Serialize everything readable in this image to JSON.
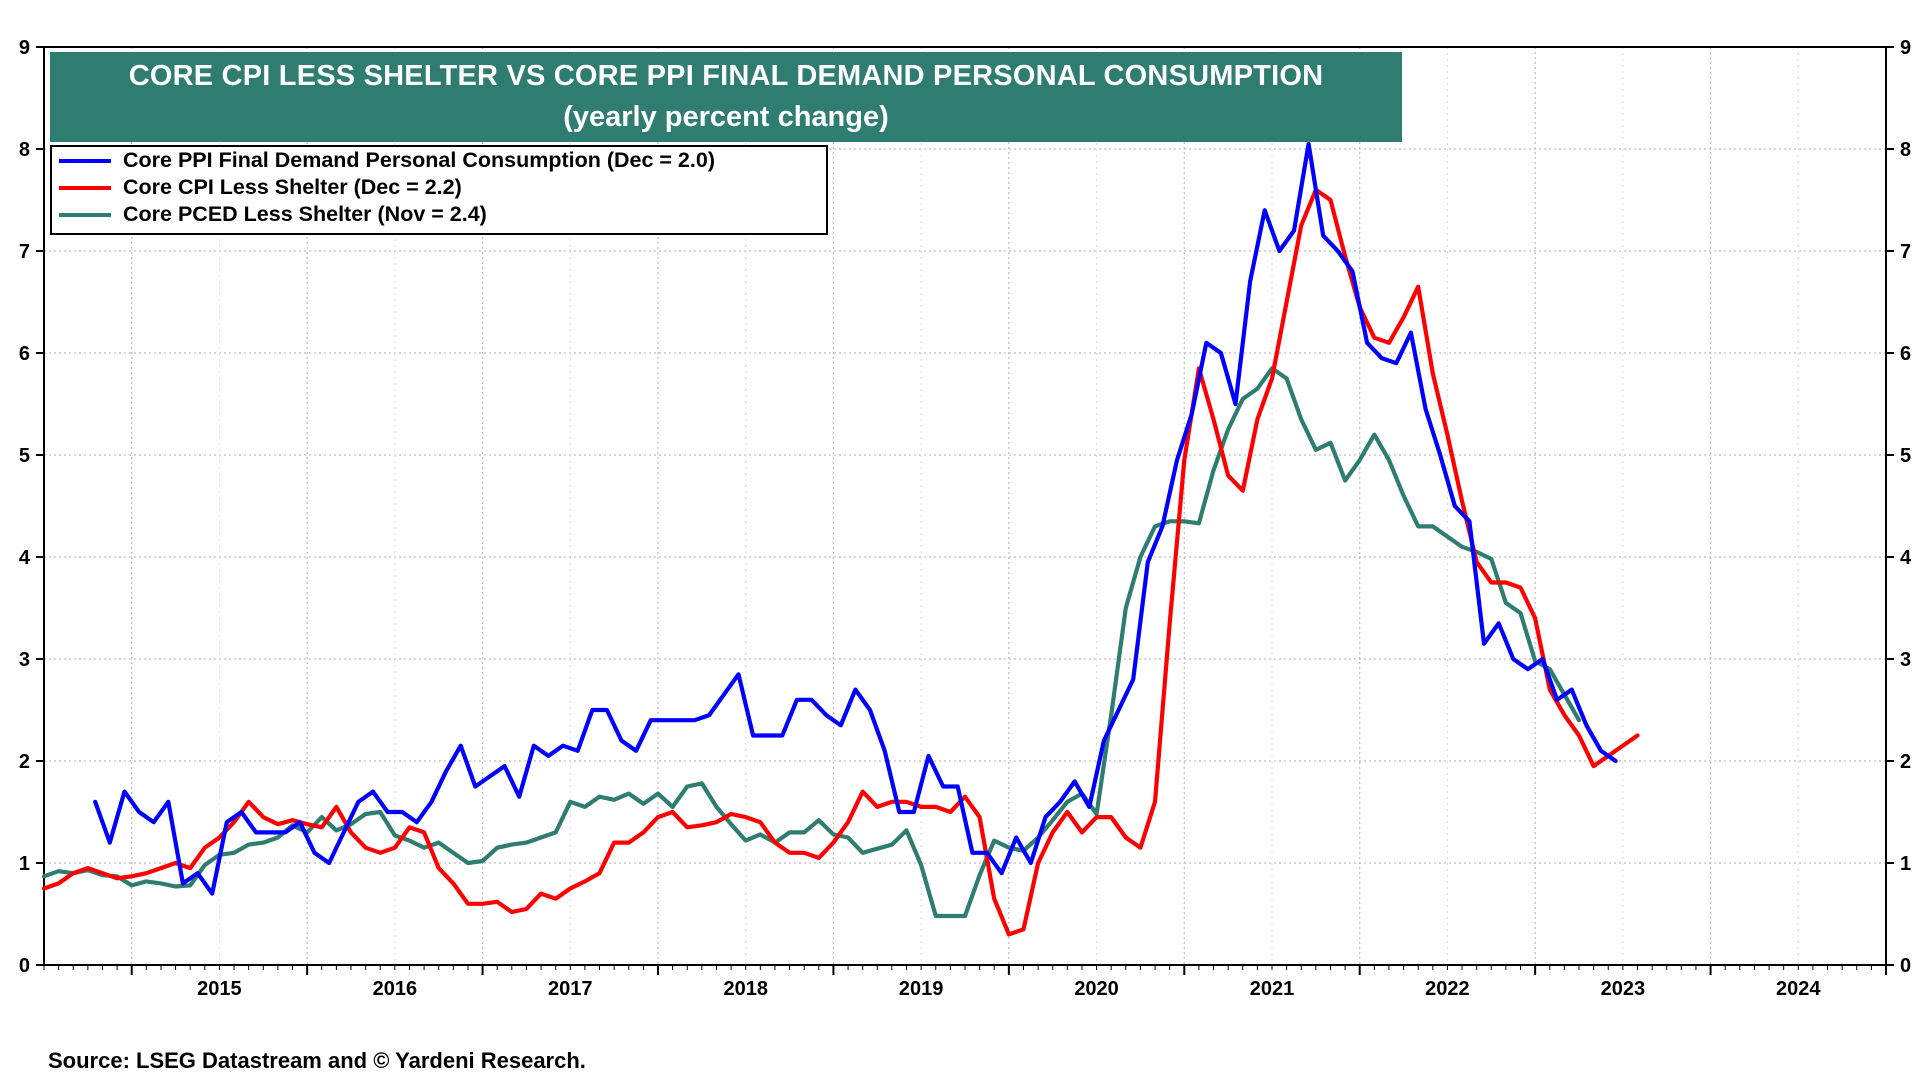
{
  "title": {
    "line1": "CORE CPI LESS SHELTER VS CORE PPI FINAL DEMAND PERSONAL CONSUMPTION",
    "line2": "(yearly percent change)"
  },
  "legend": [
    {
      "label": "Core PPI Final Demand Personal Consumption (Dec = 2.0)",
      "color": "#0000ff"
    },
    {
      "label": "Core CPI Less Shelter (Dec = 2.2)",
      "color": "#ff0000"
    },
    {
      "label": "Core PCED Less Shelter (Nov = 2.4)",
      "color": "#2e7d70"
    }
  ],
  "source": "Source: LSEG Datastream and © Yardeni Research.",
  "chart_data": {
    "type": "line",
    "title": "CORE CPI LESS SHELTER VS CORE PPI FINAL DEMAND PERSONAL CONSUMPTION",
    "subtitle": "(yearly percent change)",
    "xlabel": "",
    "ylabel": "",
    "xlim": [
      2014.5,
      2025.0
    ],
    "ylim": [
      0,
      9
    ],
    "grid": true,
    "y_ticks": [
      "0",
      "1",
      "2",
      "3",
      "4",
      "5",
      "6",
      "7",
      "8",
      "9"
    ],
    "year_labels": [
      "2015",
      "2016",
      "2017",
      "2018",
      "2019",
      "2020",
      "2021",
      "2022",
      "2023",
      "2024"
    ],
    "series": [
      {
        "name": "Core PPI Final Demand Personal Consumption (Dec = 2.0)",
        "color": "#0000ff",
        "start": 2014.792,
        "values": [
          1.6,
          1.2,
          1.7,
          1.5,
          1.4,
          1.6,
          0.8,
          0.9,
          0.7,
          1.4,
          1.5,
          1.3,
          1.3,
          1.3,
          1.4,
          1.1,
          1.0,
          1.3,
          1.6,
          1.7,
          1.5,
          1.5,
          1.4,
          1.6,
          1.9,
          2.15,
          1.75,
          1.85,
          1.95,
          1.65,
          2.15,
          2.05,
          2.15,
          2.1,
          2.5,
          2.5,
          2.2,
          2.1,
          2.4,
          2.4,
          2.4,
          2.4,
          2.45,
          2.65,
          2.85,
          2.25,
          2.25,
          2.25,
          2.6,
          2.6,
          2.45,
          2.35,
          2.7,
          2.5,
          2.1,
          1.5,
          1.5,
          2.05,
          1.75,
          1.75,
          1.1,
          1.1,
          0.9,
          1.25,
          1.0,
          1.45,
          1.6,
          1.8,
          1.55,
          2.2,
          2.5,
          2.8,
          3.95,
          4.3,
          4.95,
          5.4,
          6.1,
          6.0,
          5.5,
          6.7,
          7.4,
          7.0,
          7.2,
          8.05,
          7.15,
          7.0,
          6.8,
          6.1,
          5.95,
          5.9,
          6.2,
          5.45,
          5.0,
          4.5,
          4.35,
          3.15,
          3.35,
          3.0,
          2.9,
          3.0,
          2.6,
          2.7,
          2.35,
          2.1,
          2.0
        ]
      },
      {
        "name": "Core CPI Less Shelter (Dec = 2.2)",
        "color": "#ff0000",
        "start": 2014.5,
        "values": [
          0.75,
          0.8,
          0.9,
          0.95,
          0.9,
          0.85,
          0.87,
          0.9,
          0.95,
          1.0,
          0.95,
          1.15,
          1.25,
          1.4,
          1.6,
          1.45,
          1.38,
          1.42,
          1.38,
          1.35,
          1.55,
          1.3,
          1.15,
          1.1,
          1.15,
          1.35,
          1.3,
          0.95,
          0.8,
          0.6,
          0.6,
          0.62,
          0.52,
          0.55,
          0.7,
          0.65,
          0.75,
          0.82,
          0.9,
          1.2,
          1.2,
          1.3,
          1.45,
          1.5,
          1.35,
          1.37,
          1.4,
          1.48,
          1.45,
          1.4,
          1.2,
          1.1,
          1.1,
          1.05,
          1.2,
          1.4,
          1.7,
          1.55,
          1.6,
          1.6,
          1.55,
          1.55,
          1.5,
          1.65,
          1.45,
          0.65,
          0.3,
          0.35,
          1.0,
          1.3,
          1.5,
          1.3,
          1.45,
          1.45,
          1.25,
          1.15,
          1.6,
          3.35,
          4.95,
          5.85,
          5.35,
          4.8,
          4.65,
          5.35,
          5.75,
          6.5,
          7.25,
          7.6,
          7.5,
          6.95,
          6.45,
          6.15,
          6.1,
          6.35,
          6.65,
          5.8,
          5.2,
          4.55,
          3.95,
          3.75,
          3.75,
          3.7,
          3.4,
          2.7,
          2.45,
          2.25,
          1.95,
          2.05,
          2.15,
          2.25
        ]
      },
      {
        "name": "Core PCED Less Shelter (Nov = 2.4)",
        "color": "#2e7d70",
        "start": 2014.5,
        "values": [
          0.87,
          0.92,
          0.9,
          0.93,
          0.88,
          0.87,
          0.78,
          0.82,
          0.8,
          0.77,
          0.78,
          0.98,
          1.08,
          1.1,
          1.18,
          1.2,
          1.25,
          1.37,
          1.3,
          1.45,
          1.32,
          1.38,
          1.48,
          1.5,
          1.27,
          1.22,
          1.15,
          1.2,
          1.1,
          1.0,
          1.02,
          1.15,
          1.18,
          1.2,
          1.25,
          1.3,
          1.6,
          1.55,
          1.65,
          1.62,
          1.68,
          1.58,
          1.68,
          1.55,
          1.75,
          1.78,
          1.55,
          1.38,
          1.22,
          1.28,
          1.2,
          1.3,
          1.3,
          1.42,
          1.28,
          1.25,
          1.1,
          1.14,
          1.18,
          1.32,
          0.98,
          0.48,
          0.48,
          0.48,
          0.88,
          1.22,
          1.15,
          1.12,
          1.25,
          1.42,
          1.6,
          1.68,
          1.48,
          2.45,
          3.5,
          4.0,
          4.3,
          4.35,
          4.35,
          4.33,
          4.85,
          5.25,
          5.55,
          5.65,
          5.85,
          5.75,
          5.35,
          5.05,
          5.12,
          4.75,
          4.95,
          5.2,
          4.95,
          4.6,
          4.3,
          4.3,
          4.2,
          4.1,
          4.05,
          3.98,
          3.55,
          3.45,
          2.98,
          2.9,
          2.65,
          2.4
        ]
      }
    ]
  }
}
